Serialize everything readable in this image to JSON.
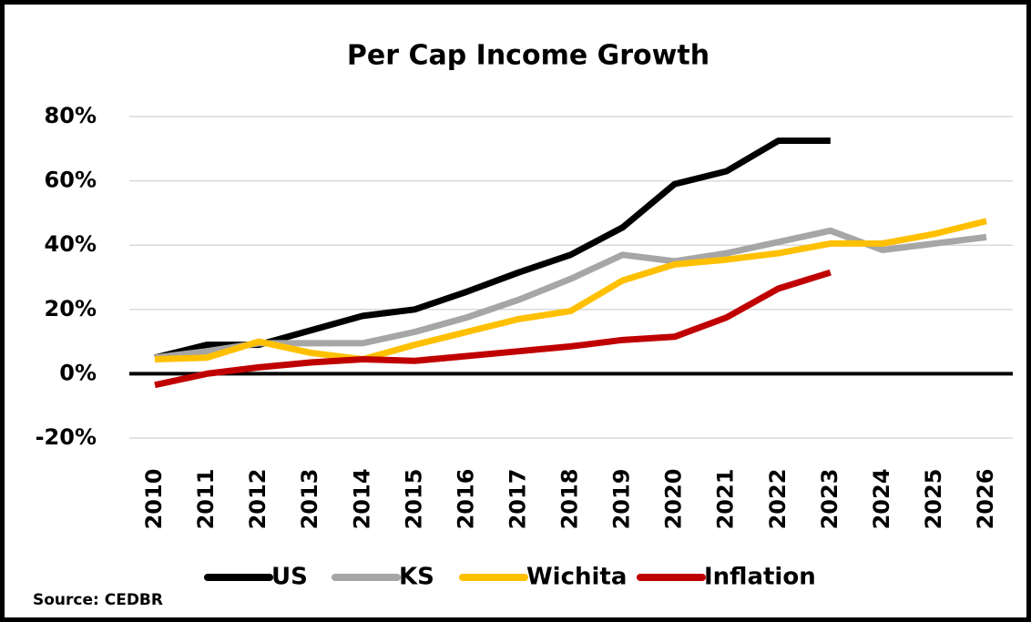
{
  "chart_data": {
    "type": "line",
    "title": "Per Cap Income Growth",
    "categories": [
      "2010",
      "2011",
      "2012",
      "2013",
      "2014",
      "2015",
      "2016",
      "2017",
      "2018",
      "2019",
      "2020",
      "2021",
      "2022",
      "2023",
      "2024",
      "2025",
      "2026"
    ],
    "series": [
      {
        "name": "US",
        "color": "#000000",
        "values": [
          5,
          9,
          9,
          13.5,
          18,
          20,
          25.5,
          31.5,
          37,
          45.5,
          59,
          63,
          72.5,
          72.5,
          null,
          null,
          null
        ]
      },
      {
        "name": "KS",
        "color": "#a6a6a6",
        "values": [
          5,
          7,
          9.5,
          9.5,
          9.5,
          13,
          17.5,
          23,
          29.5,
          37,
          35,
          37.5,
          41,
          44.5,
          38.5,
          40.5,
          42.5
        ]
      },
      {
        "name": "Wichita",
        "color": "#ffc000",
        "values": [
          4.5,
          5,
          10,
          6.5,
          4.5,
          9,
          13,
          17,
          19.5,
          29,
          34,
          35.5,
          37.5,
          40.5,
          40.5,
          43.5,
          47.5
        ]
      },
      {
        "name": "Inflation",
        "color": "#c00000",
        "values": [
          -3.5,
          0,
          2,
          3.5,
          4.5,
          4,
          5.5,
          7,
          8.5,
          10.5,
          11.5,
          17.5,
          26.5,
          31.5,
          null,
          null,
          null
        ]
      }
    ],
    "ylim": [
      -20,
      80
    ],
    "yticks": [
      {
        "value": -20,
        "label": "-20%"
      },
      {
        "value": 0,
        "label": "0%"
      },
      {
        "value": 20,
        "label": "20%"
      },
      {
        "value": 40,
        "label": "40%"
      },
      {
        "value": 60,
        "label": "60%"
      },
      {
        "value": 80,
        "label": "80%"
      }
    ],
    "grid": true,
    "legend": "bottom",
    "source": "Source: CEDBR"
  }
}
